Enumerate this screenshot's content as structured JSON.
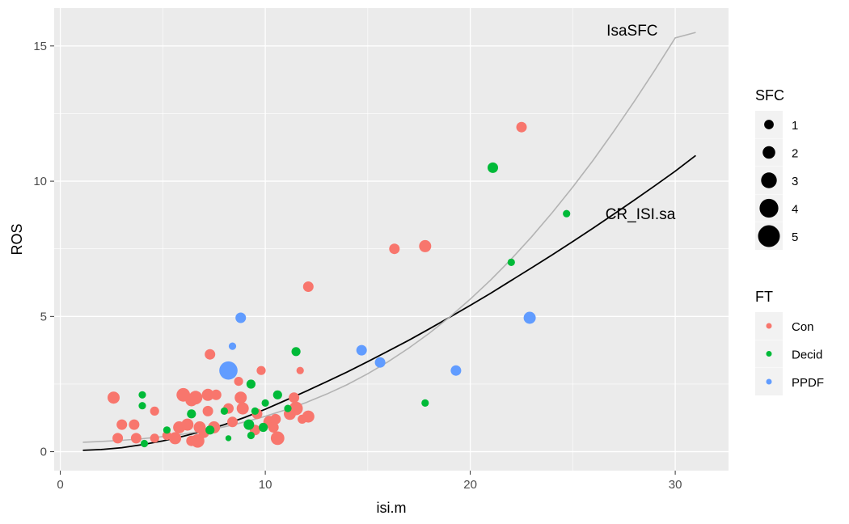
{
  "chart_data": {
    "type": "scatter",
    "title": "",
    "xlabel": "isi.m",
    "ylabel": "ROS",
    "xlim": [
      -0.3,
      32.6
    ],
    "ylim": [
      -0.7,
      16.4
    ],
    "x_ticks": [
      0,
      10,
      20,
      30
    ],
    "y_ticks": [
      0,
      5,
      10,
      15
    ],
    "grid": true,
    "legend_placement": "right",
    "size_legend": {
      "title": "SFC",
      "entries": [
        "1",
        "2",
        "3",
        "4",
        "5"
      ]
    },
    "color_legend": {
      "title": "FT",
      "entries": [
        "Con",
        "Decid",
        "PPDF"
      ]
    },
    "colors": {
      "Con": "#F8766D",
      "Decid": "#00BA38",
      "PPDF": "#619CFF",
      "panel": "#EBEBEB",
      "grid": "#FFFFFF",
      "fit_black": "#000000",
      "fit_grey": "#B3B3B3"
    },
    "annotations": [
      {
        "text": "IsaSFC",
        "x": 27.9,
        "y": 15.6
      },
      {
        "text": "CR_ISI.sa",
        "x": 28.3,
        "y": 8.8
      }
    ],
    "series": [
      {
        "name": "Con",
        "points": [
          [
            2.6,
            2.0,
            3
          ],
          [
            2.8,
            0.5,
            2.5
          ],
          [
            3.0,
            1.0,
            2.5
          ],
          [
            3.6,
            1.0,
            2.5
          ],
          [
            3.7,
            0.5,
            2.5
          ],
          [
            4.6,
            0.5,
            2
          ],
          [
            4.6,
            1.5,
            2
          ],
          [
            5.2,
            0.6,
            2
          ],
          [
            5.6,
            0.5,
            3
          ],
          [
            5.8,
            0.9,
            3
          ],
          [
            6.0,
            2.1,
            3.5
          ],
          [
            6.2,
            1.0,
            3
          ],
          [
            6.4,
            1.9,
            3
          ],
          [
            6.4,
            0.4,
            2.5
          ],
          [
            6.6,
            2.0,
            3.5
          ],
          [
            6.7,
            0.4,
            3.5
          ],
          [
            6.8,
            0.9,
            3
          ],
          [
            7.0,
            0.7,
            2.5
          ],
          [
            7.2,
            2.1,
            3
          ],
          [
            7.2,
            1.5,
            2.5
          ],
          [
            7.3,
            3.6,
            2.5
          ],
          [
            7.5,
            0.9,
            3
          ],
          [
            7.6,
            2.1,
            2.5
          ],
          [
            8.2,
            1.6,
            2.5
          ],
          [
            8.4,
            1.1,
            2.5
          ],
          [
            8.7,
            2.6,
            2
          ],
          [
            8.8,
            2.0,
            3
          ],
          [
            8.9,
            1.6,
            3
          ],
          [
            9.5,
            0.8,
            2.5
          ],
          [
            9.6,
            1.4,
            2.5
          ],
          [
            9.8,
            3.0,
            2
          ],
          [
            10.2,
            1.1,
            3
          ],
          [
            10.4,
            0.9,
            2.5
          ],
          [
            10.5,
            1.2,
            2.5
          ],
          [
            10.6,
            0.5,
            3.5
          ],
          [
            11.2,
            1.4,
            3
          ],
          [
            11.4,
            2.0,
            2.5
          ],
          [
            11.5,
            1.6,
            3.5
          ],
          [
            11.7,
            3.0,
            1.5
          ],
          [
            11.8,
            1.2,
            2
          ],
          [
            12.1,
            1.3,
            3
          ],
          [
            12.1,
            6.1,
            2.5
          ],
          [
            16.3,
            7.5,
            2.5
          ],
          [
            17.8,
            7.6,
            3
          ],
          [
            22.5,
            12.0,
            2.5
          ]
        ]
      },
      {
        "name": "Decid",
        "points": [
          [
            4.0,
            2.1,
            1.5
          ],
          [
            4.0,
            1.7,
            1.5
          ],
          [
            4.1,
            0.3,
            1.5
          ],
          [
            5.2,
            0.8,
            1.5
          ],
          [
            6.4,
            1.4,
            2
          ],
          [
            7.3,
            0.8,
            2
          ],
          [
            8.0,
            1.5,
            1.5
          ],
          [
            8.2,
            0.5,
            1
          ],
          [
            8.3,
            2.9,
            2
          ],
          [
            9.2,
            1.0,
            2.5
          ],
          [
            9.3,
            2.5,
            2
          ],
          [
            9.3,
            0.6,
            1.5
          ],
          [
            9.5,
            1.5,
            1.5
          ],
          [
            9.9,
            0.9,
            2
          ],
          [
            10.0,
            1.8,
            1.5
          ],
          [
            10.6,
            2.1,
            2
          ],
          [
            11.1,
            1.6,
            1.5
          ],
          [
            11.5,
            3.7,
            2
          ],
          [
            17.8,
            1.8,
            1.5
          ],
          [
            21.1,
            10.5,
            2.5
          ],
          [
            22.0,
            7.0,
            1.5
          ],
          [
            24.7,
            8.8,
            1.5
          ]
        ]
      },
      {
        "name": "PPDF",
        "points": [
          [
            8.2,
            3.0,
            5
          ],
          [
            8.4,
            3.9,
            1.5
          ],
          [
            8.8,
            4.95,
            2.5
          ],
          [
            14.7,
            3.75,
            2.5
          ],
          [
            15.6,
            3.3,
            2.5
          ],
          [
            19.3,
            3.0,
            2.5
          ],
          [
            22.9,
            4.95,
            3
          ]
        ]
      }
    ],
    "fit_lines": [
      {
        "name": "CR_ISI.sa",
        "color": "#000000",
        "x": [
          1.1,
          2,
          3,
          4,
          5,
          6,
          7,
          8,
          9,
          10,
          11,
          12,
          13,
          14,
          15,
          16,
          17,
          18,
          19,
          20,
          21,
          22,
          23,
          24,
          25,
          26,
          27,
          28,
          29,
          30,
          31
        ],
        "y": [
          0.05,
          0.08,
          0.15,
          0.26,
          0.4,
          0.57,
          0.77,
          1.0,
          1.27,
          1.57,
          1.9,
          2.24,
          2.59,
          2.95,
          3.33,
          3.72,
          4.12,
          4.54,
          4.97,
          5.41,
          5.86,
          6.33,
          6.8,
          7.28,
          7.77,
          8.27,
          8.78,
          9.3,
          9.83,
          10.37,
          10.95
        ]
      },
      {
        "name": "IsaSFC",
        "color": "#B3B3B3",
        "x": [
          1.1,
          2,
          3,
          4,
          5,
          6,
          7,
          8,
          9,
          10,
          11,
          12,
          13,
          14,
          15,
          16,
          17,
          18,
          19,
          20,
          21,
          22,
          23,
          24,
          25,
          26,
          27,
          28,
          29,
          30,
          31
        ],
        "y": [
          0.35,
          0.38,
          0.42,
          0.48,
          0.56,
          0.65,
          0.77,
          0.92,
          1.1,
          1.31,
          1.55,
          1.82,
          2.13,
          2.48,
          2.88,
          3.33,
          3.83,
          4.38,
          4.98,
          5.64,
          6.35,
          7.12,
          7.95,
          8.84,
          9.78,
          10.78,
          11.84,
          12.95,
          14.1,
          15.3,
          15.5
        ]
      }
    ]
  }
}
